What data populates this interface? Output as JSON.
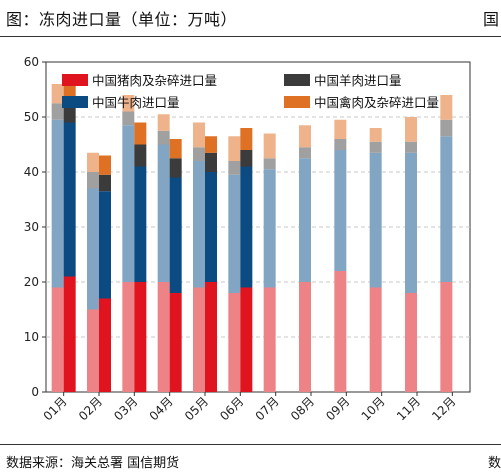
{
  "header": {
    "title": "图：冻肉进口量（单位：万吨）",
    "edge_mark": "国"
  },
  "footer": {
    "source": "数据来源：海关总署   国信期货",
    "edge_mark": "数"
  },
  "colors": {
    "pork": "#e0141e",
    "pork_light": "#ee8387",
    "beef": "#0c4a82",
    "beef_light": "#82a5c3",
    "mutton": "#3b3b3b",
    "mutton_light": "#a0a0a0",
    "poultry": "#de7124",
    "poultry_light": "#efb38b"
  },
  "chart_data": {
    "type": "bar",
    "stacked": true,
    "title": "冻肉进口量",
    "ylim": [
      0,
      60
    ],
    "yticks": [
      0,
      10,
      20,
      30,
      40,
      50,
      60
    ],
    "grid": true,
    "legend_position": "top",
    "categories": [
      "01月",
      "02月",
      "03月",
      "04月",
      "05月",
      "06月",
      "07月",
      "08月",
      "09月",
      "10月",
      "11月",
      "12月"
    ],
    "series": [
      {
        "name": "中国猪肉及杂碎进口量",
        "color_key": "pork",
        "prev": [
          19,
          15,
          20,
          20,
          19,
          18,
          19,
          20,
          22,
          19,
          18,
          20
        ],
        "curr": [
          21,
          17,
          20,
          18,
          20,
          19
        ]
      },
      {
        "name": "中国牛肉进口量",
        "color_key": "beef",
        "prev": [
          30.5,
          22,
          28.5,
          25,
          23,
          21.5,
          21.5,
          22.5,
          22,
          24.5,
          25.5,
          26.5
        ],
        "curr": [
          28,
          19.5,
          21,
          21,
          20,
          22
        ]
      },
      {
        "name": "中国羊肉进口量",
        "color_key": "mutton",
        "prev": [
          3,
          3,
          2.5,
          2.5,
          2.5,
          2.5,
          2,
          2,
          2,
          2,
          2,
          3
        ],
        "curr": [
          3,
          3,
          4,
          3.5,
          3.5,
          3
        ]
      },
      {
        "name": "中国禽肉及杂碎进口量",
        "color_key": "poultry",
        "prev": [
          3.5,
          3.5,
          3,
          3,
          4.5,
          4.5,
          4.5,
          4,
          3.5,
          2.5,
          4.5,
          4.5
        ],
        "curr": [
          4,
          3.5,
          4,
          3.5,
          3,
          4
        ]
      }
    ]
  }
}
